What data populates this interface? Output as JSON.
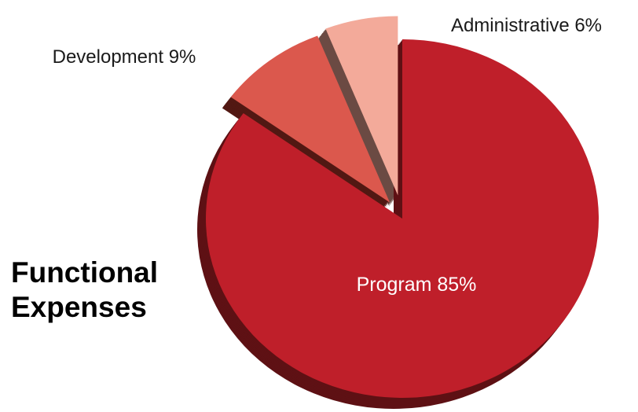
{
  "chart_data": {
    "type": "pie",
    "title_lines": [
      "Functional",
      "Expenses"
    ],
    "slices": [
      {
        "name": "Program",
        "value": 85,
        "label": "Program 85%",
        "color": "#bf1f2a",
        "side_color": "#5e1114",
        "label_color": "#ffffff"
      },
      {
        "name": "Development",
        "value": 9,
        "label": "Development 9%",
        "color": "#db584d",
        "side_color": "#521813",
        "label_color": "#1a1a1a"
      },
      {
        "name": "Administrative",
        "value": 6,
        "label": "Administrative 6%",
        "color": "#f3aa9a",
        "side_color": "#6b4a43",
        "label_color": "#1a1a1a"
      }
    ],
    "legend": "none",
    "grid": false
  }
}
